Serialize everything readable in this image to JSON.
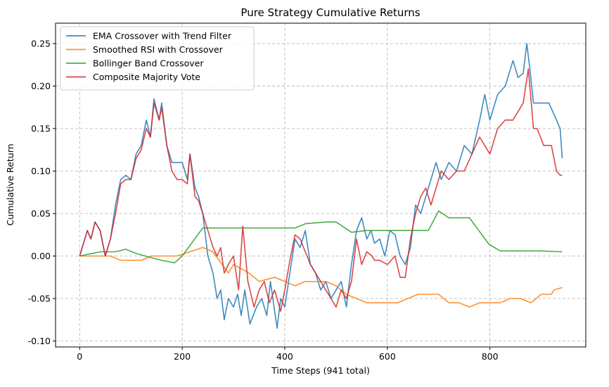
{
  "chart_data": {
    "type": "line",
    "title": "Pure Strategy Cumulative Returns",
    "xlabel": "Time Steps (941 total)",
    "ylabel": "Cumulative Return",
    "xlim": [
      -47,
      987
    ],
    "ylim": [
      -0.107,
      0.274
    ],
    "xticks": [
      0,
      200,
      400,
      600,
      800
    ],
    "yticks": [
      -0.1,
      -0.05,
      0.0,
      0.05,
      0.1,
      0.15,
      0.2,
      0.25
    ],
    "grid": true,
    "legend_position": "upper left",
    "series": [
      {
        "name": "EMA Crossover with Trend Filter",
        "color": "#1f77b4",
        "x": [
          0,
          10,
          15,
          22,
          30,
          40,
          50,
          60,
          70,
          80,
          90,
          100,
          110,
          120,
          130,
          138,
          145,
          155,
          160,
          170,
          180,
          190,
          200,
          210,
          215,
          225,
          232,
          240,
          250,
          260,
          268,
          275,
          282,
          290,
          300,
          308,
          315,
          322,
          332,
          345,
          355,
          365,
          372,
          378,
          385,
          392,
          400,
          410,
          420,
          430,
          440,
          450,
          460,
          470,
          480,
          490,
          500,
          510,
          520,
          530,
          540,
          550,
          560,
          568,
          575,
          585,
          595,
          605,
          615,
          625,
          635,
          645,
          655,
          665,
          675,
          685,
          695,
          705,
          720,
          735,
          750,
          765,
          780,
          790,
          800,
          815,
          830,
          845,
          855,
          865,
          872,
          878,
          885,
          892,
          900,
          915,
          930,
          937,
          941
        ],
        "y": [
          0.0,
          0.02,
          0.03,
          0.02,
          0.04,
          0.03,
          0.0,
          0.02,
          0.06,
          0.09,
          0.095,
          0.09,
          0.12,
          0.13,
          0.16,
          0.14,
          0.185,
          0.16,
          0.18,
          0.13,
          0.11,
          0.11,
          0.11,
          0.09,
          0.12,
          0.08,
          0.07,
          0.05,
          0.0,
          -0.02,
          -0.05,
          -0.04,
          -0.075,
          -0.05,
          -0.06,
          -0.045,
          -0.07,
          -0.04,
          -0.08,
          -0.06,
          -0.05,
          -0.07,
          -0.03,
          -0.055,
          -0.085,
          -0.05,
          -0.06,
          -0.02,
          0.02,
          0.01,
          0.03,
          -0.01,
          -0.02,
          -0.04,
          -0.03,
          -0.05,
          -0.04,
          -0.03,
          -0.06,
          -0.01,
          0.03,
          0.045,
          0.02,
          0.03,
          0.015,
          0.02,
          0.0,
          0.03,
          0.025,
          0.0,
          -0.01,
          0.01,
          0.06,
          0.05,
          0.07,
          0.09,
          0.11,
          0.09,
          0.11,
          0.1,
          0.13,
          0.12,
          0.16,
          0.19,
          0.16,
          0.19,
          0.2,
          0.23,
          0.21,
          0.215,
          0.25,
          0.22,
          0.18,
          0.18,
          0.18,
          0.18,
          0.16,
          0.15,
          0.115
        ]
      },
      {
        "name": "Smoothed RSI with Crossover",
        "color": "#ff7f0e",
        "x": [
          0,
          60,
          80,
          120,
          140,
          190,
          240,
          260,
          290,
          300,
          330,
          350,
          380,
          400,
          420,
          440,
          460,
          480,
          500,
          520,
          560,
          580,
          620,
          640,
          660,
          680,
          700,
          720,
          740,
          760,
          780,
          800,
          820,
          840,
          860,
          880,
          900,
          920,
          925,
          941
        ],
        "y": [
          0.0,
          0.0,
          -0.005,
          -0.005,
          0.0,
          0.0,
          0.01,
          0.005,
          -0.02,
          -0.01,
          -0.02,
          -0.03,
          -0.025,
          -0.03,
          -0.035,
          -0.03,
          -0.03,
          -0.03,
          -0.035,
          -0.045,
          -0.055,
          -0.055,
          -0.055,
          -0.05,
          -0.045,
          -0.045,
          -0.045,
          -0.055,
          -0.055,
          -0.06,
          -0.055,
          -0.055,
          -0.055,
          -0.05,
          -0.05,
          -0.055,
          -0.045,
          -0.045,
          -0.04,
          -0.037
        ]
      },
      {
        "name": "Bollinger Band Crossover",
        "color": "#2ca02c",
        "x": [
          0,
          40,
          70,
          90,
          110,
          140,
          160,
          185,
          200,
          240,
          300,
          360,
          420,
          440,
          480,
          500,
          530,
          560,
          600,
          640,
          680,
          700,
          720,
          760,
          798,
          820,
          860,
          900,
          941
        ],
        "y": [
          0.0,
          0.005,
          0.005,
          0.008,
          0.003,
          -0.002,
          -0.005,
          -0.008,
          0.0,
          0.033,
          0.033,
          0.033,
          0.033,
          0.038,
          0.04,
          0.04,
          0.028,
          0.03,
          0.03,
          0.03,
          0.03,
          0.053,
          0.045,
          0.045,
          0.014,
          0.006,
          0.006,
          0.006,
          0.005
        ]
      },
      {
        "name": "Composite Majority Vote",
        "color": "#d62728",
        "x": [
          0,
          10,
          15,
          22,
          30,
          40,
          50,
          60,
          70,
          80,
          90,
          100,
          110,
          120,
          130,
          138,
          145,
          155,
          160,
          170,
          180,
          190,
          200,
          210,
          215,
          225,
          232,
          240,
          250,
          260,
          268,
          275,
          282,
          290,
          300,
          310,
          318,
          328,
          340,
          350,
          360,
          370,
          380,
          392,
          400,
          410,
          420,
          430,
          440,
          450,
          460,
          470,
          480,
          490,
          500,
          510,
          520,
          530,
          540,
          550,
          560,
          570,
          575,
          585,
          600,
          615,
          625,
          635,
          645,
          655,
          665,
          675,
          685,
          695,
          705,
          720,
          735,
          750,
          765,
          780,
          790,
          800,
          815,
          830,
          845,
          855,
          865,
          875,
          885,
          892,
          905,
          920,
          930,
          937,
          941
        ],
        "y": [
          0.0,
          0.02,
          0.03,
          0.02,
          0.04,
          0.03,
          0.0,
          0.02,
          0.05,
          0.085,
          0.09,
          0.09,
          0.115,
          0.125,
          0.15,
          0.14,
          0.18,
          0.16,
          0.175,
          0.13,
          0.1,
          0.09,
          0.09,
          0.085,
          0.12,
          0.07,
          0.065,
          0.05,
          0.03,
          0.01,
          0.0,
          0.01,
          -0.02,
          -0.01,
          0.0,
          -0.04,
          0.035,
          -0.03,
          -0.06,
          -0.04,
          -0.03,
          -0.055,
          -0.04,
          -0.065,
          -0.04,
          -0.005,
          0.025,
          0.02,
          0.005,
          -0.01,
          -0.02,
          -0.03,
          -0.04,
          -0.05,
          -0.06,
          -0.04,
          -0.05,
          -0.03,
          0.02,
          -0.01,
          0.005,
          0.0,
          -0.005,
          -0.005,
          -0.01,
          0.0,
          -0.025,
          -0.025,
          0.02,
          0.05,
          0.07,
          0.08,
          0.06,
          0.08,
          0.1,
          0.09,
          0.1,
          0.1,
          0.12,
          0.14,
          0.13,
          0.12,
          0.15,
          0.16,
          0.16,
          0.17,
          0.18,
          0.22,
          0.15,
          0.15,
          0.13,
          0.13,
          0.1,
          0.095,
          0.095
        ]
      }
    ]
  }
}
